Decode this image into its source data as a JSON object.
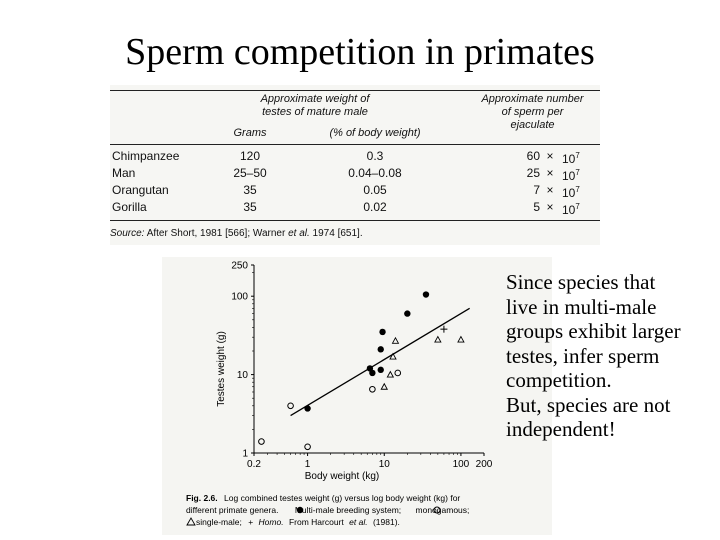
{
  "title": "Sperm competition in primates",
  "table": {
    "headers": {
      "testes_weight": [
        "Approximate weight of",
        "testes of mature male"
      ],
      "grams": "Grams",
      "percent": "(% of body weight)",
      "sperm": [
        "Approximate number",
        "of sperm per",
        "ejaculate"
      ]
    },
    "rows": [
      {
        "species": "Chimpanzee",
        "grams": "120",
        "percent": "0.3",
        "sperm": "60",
        "times": "×",
        "base": "10",
        "exp": "7"
      },
      {
        "species": "Man",
        "grams": "25–50",
        "percent": "0.04–0.08",
        "sperm": "25",
        "times": "×",
        "base": "10",
        "exp": "7"
      },
      {
        "species": "Orangutan",
        "grams": "35",
        "percent": "0.05",
        "sperm": "7",
        "times": "×",
        "base": "10",
        "exp": "7"
      },
      {
        "species": "Gorilla",
        "grams": "35",
        "percent": "0.02",
        "sperm": "5",
        "times": "×",
        "base": "10",
        "exp": "7"
      }
    ],
    "source": {
      "label": "Source:",
      "text1": "After Short, 1981 [566]; Warner",
      "etal": "et al.",
      "text2": "1974 [651]."
    }
  },
  "chart_data": {
    "type": "scatter",
    "xscale": "log",
    "yscale": "log",
    "xlim": [
      0.2,
      200
    ],
    "ylim": [
      1,
      250
    ],
    "xlabel": "Body weight (kg)",
    "ylabel": "Testes weight (g)",
    "xticks": [
      "0.2",
      "1",
      "10",
      "100",
      "200"
    ],
    "yticks": [
      "1",
      "10",
      "100",
      "250"
    ],
    "series": [
      {
        "name": "Multi-male breeding system",
        "marker": "filled-circle",
        "points": [
          [
            1.0,
            3.7
          ],
          [
            6.5,
            12
          ],
          [
            7.0,
            10.5
          ],
          [
            9.0,
            11.5
          ],
          [
            9.0,
            21
          ],
          [
            9.5,
            35
          ],
          [
            20,
            60
          ],
          [
            35,
            105
          ]
        ]
      },
      {
        "name": "monogamous",
        "marker": "open-circle",
        "points": [
          [
            0.25,
            1.4
          ],
          [
            0.6,
            4
          ],
          [
            1.0,
            1.2
          ],
          [
            7.0,
            6.5
          ],
          [
            15,
            10.5
          ]
        ]
      },
      {
        "name": "single-male",
        "marker": "open-triangle",
        "points": [
          [
            10,
            7
          ],
          [
            12,
            10
          ],
          [
            13,
            17
          ],
          [
            14,
            27
          ],
          [
            50,
            28
          ],
          [
            100,
            28
          ]
        ]
      },
      {
        "name": "Homo",
        "marker": "plus",
        "points": [
          [
            60,
            38
          ]
        ]
      }
    ],
    "regression_line": [
      [
        0.6,
        3.0
      ],
      [
        130,
        70
      ]
    ],
    "caption": {
      "fig": "Fig. 2.6.",
      "line1": "Log combined testes weight (g) versus log body weight (kg) for",
      "line2a": "different primate genera.",
      "line2b": "Multi-male breeding system;",
      "line2c": "monogamous;",
      "line3a": "single-male;",
      "line3b": "+",
      "line3c": "Homo.",
      "line3d": "From Harcourt",
      "etal": "et al.",
      "line3e": "(1981)."
    }
  },
  "side_text": [
    "Since species that",
    "live in multi-male",
    "groups exhibit larger",
    "testes, infer sperm",
    "competition.",
    "But, species are not",
    "independent!"
  ]
}
